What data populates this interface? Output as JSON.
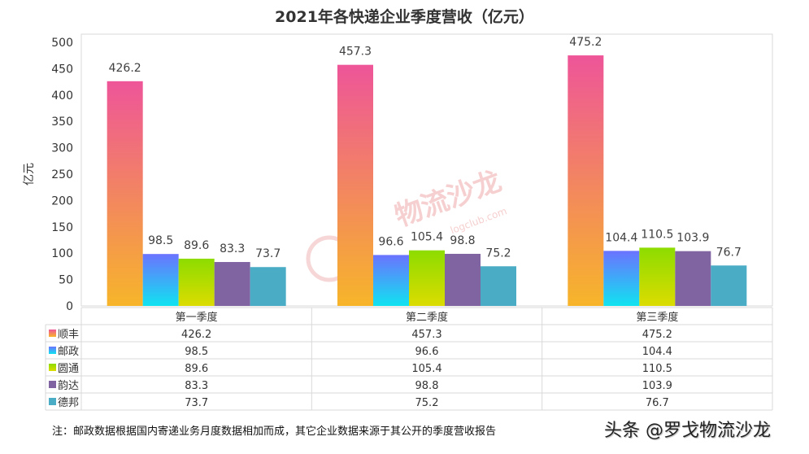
{
  "chart_data": {
    "type": "bar",
    "title": "2021年各快递企业季度营收（亿元）",
    "ylabel": "亿元",
    "xlabel": "",
    "ylim": [
      0,
      500
    ],
    "yticks": [
      0,
      50,
      100,
      150,
      200,
      250,
      300,
      350,
      400,
      450,
      500
    ],
    "grid": false,
    "legend": "data-table",
    "categories": [
      "第一季度",
      "第二季度",
      "第三季度"
    ],
    "series": [
      {
        "name": "顺丰",
        "values": [
          426.2,
          457.3,
          475.2
        ],
        "colors": [
          "#ee5599",
          "#f7b52a"
        ]
      },
      {
        "name": "邮政",
        "values": [
          98.5,
          96.6,
          104.4
        ],
        "colors": [
          "#6b73ff",
          "#10e3f0"
        ]
      },
      {
        "name": "圆通",
        "values": [
          89.6,
          105.4,
          110.5
        ],
        "colors": [
          "#8ddc00",
          "#dcdc00"
        ]
      },
      {
        "name": "韵达",
        "values": [
          83.3,
          98.8,
          103.9
        ],
        "colors": [
          "#8064a2",
          "#8064a2"
        ]
      },
      {
        "name": "德邦",
        "values": [
          73.7,
          75.2,
          76.7
        ],
        "colors": [
          "#4bacc6",
          "#4bacc6"
        ]
      }
    ]
  },
  "footnote": "注：邮政数据根据国内寄递业务月度数据相加而成，其它企业数据来源于其公开的季度营收报告",
  "watermark": "头条 @罗戈物流沙龙",
  "center_watermark": "物流沙龙",
  "center_watermark_sub": "logclub.com"
}
